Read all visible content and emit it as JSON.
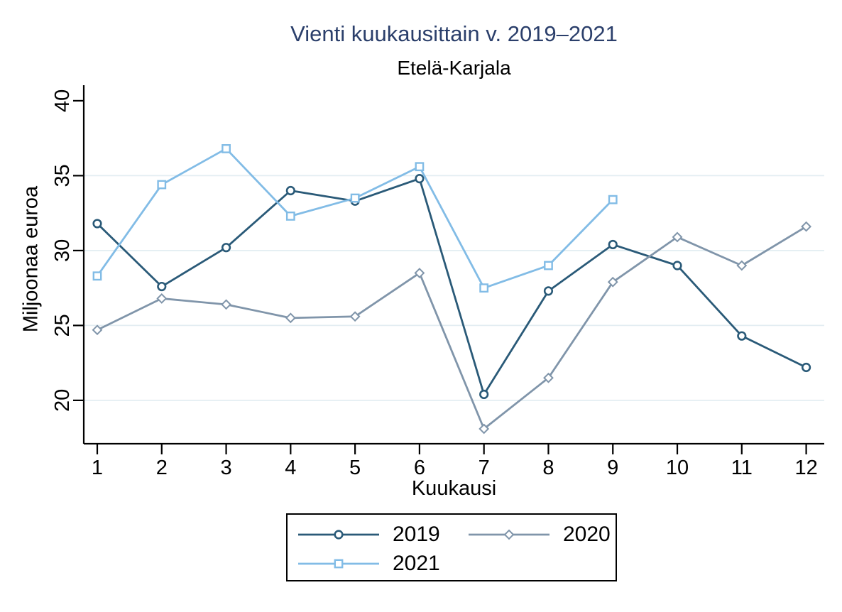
{
  "title": "Vienti kuukausittain v. 2019–2021",
  "subtitle": "Etelä-Karjala",
  "colors": {
    "title_text": "#2b3f6b",
    "axis": "#000000",
    "gridline": "#e3edf2",
    "series_2019": "#2a5a78",
    "series_2020": "#8095aa",
    "series_2021": "#82bce6"
  },
  "chart_data": {
    "type": "line",
    "title": "Vienti kuukausittain v. 2019–2021",
    "subtitle": "Etelä-Karjala",
    "xlabel": "Kuukausi",
    "ylabel": "Miljoonaa euroa",
    "x": [
      1,
      2,
      3,
      4,
      5,
      6,
      7,
      8,
      9,
      10,
      11,
      12
    ],
    "xticks": [
      1,
      2,
      3,
      4,
      5,
      6,
      7,
      8,
      9,
      10,
      11,
      12
    ],
    "yticks": [
      20,
      25,
      30,
      35,
      40
    ],
    "grid_ticks": [
      20,
      25,
      30,
      35
    ],
    "ylim": [
      16.8,
      41
    ],
    "grid": "horizontal",
    "legend_position": "bottom-center",
    "series": [
      {
        "name": "2019",
        "marker": "circle",
        "color": "#2a5a78",
        "values": [
          31.8,
          27.6,
          30.2,
          34.0,
          33.3,
          34.8,
          20.4,
          27.3,
          30.4,
          29.0,
          24.3,
          22.2
        ]
      },
      {
        "name": "2020",
        "marker": "diamond",
        "color": "#8095aa",
        "values": [
          24.7,
          26.8,
          26.4,
          25.5,
          25.6,
          28.5,
          18.1,
          21.5,
          27.9,
          30.9,
          29.0,
          31.6
        ]
      },
      {
        "name": "2021",
        "marker": "square",
        "color": "#82bce6",
        "values": [
          28.3,
          34.4,
          36.8,
          32.3,
          33.5,
          35.6,
          27.5,
          29.0,
          33.4
        ]
      }
    ]
  }
}
